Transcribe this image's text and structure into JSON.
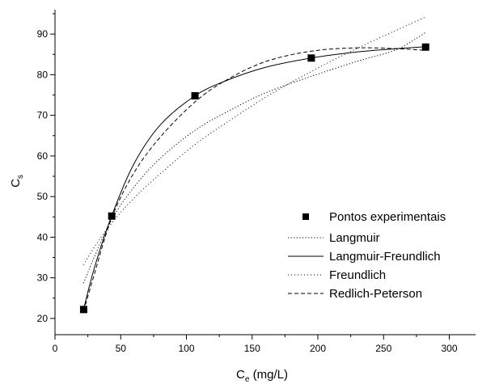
{
  "chart_data": {
    "type": "scatter",
    "x_title": {
      "main": "C",
      "sub": "e",
      "rest": " (mg/L)"
    },
    "y_title": {
      "main": "C",
      "sub": "s"
    },
    "xlim": [
      0,
      320
    ],
    "ylim": [
      16,
      96
    ],
    "x_ticks": [
      0,
      50,
      100,
      150,
      200,
      250,
      300
    ],
    "y_ticks": [
      20,
      30,
      40,
      50,
      60,
      70,
      80,
      90
    ],
    "grid": false,
    "legend_position": "bottom-right",
    "points_series": {
      "name": "Pontos experimentais",
      "x": [
        21.8,
        43.2,
        106.5,
        195.0,
        282.0
      ],
      "y": [
        22.2,
        45.2,
        74.8,
        84.1,
        86.8
      ]
    },
    "series": [
      {
        "name": "Langmuir",
        "dash": "1.2,2.4",
        "x": [
          21.8,
          30,
          43.2,
          60,
          80,
          106.5,
          130,
          160,
          195,
          230,
          260,
          282
        ],
        "y": [
          28.7,
          35.2,
          44.4,
          52.3,
          59.4,
          66.3,
          70.7,
          75.5,
          79.6,
          83.3,
          86.2,
          90.4
        ]
      },
      {
        "name": "Langmuir-Freundlich",
        "dash": "",
        "x": [
          21.8,
          30,
          43.2,
          60,
          80,
          106.5,
          130,
          160,
          195,
          230,
          260,
          282
        ],
        "y": [
          22.3,
          32.5,
          45.3,
          58.0,
          67.6,
          74.8,
          78.5,
          81.8,
          84.1,
          85.6,
          86.4,
          86.9
        ]
      },
      {
        "name": "Freundlich",
        "dash": "1,3",
        "x": [
          21.8,
          30,
          43.2,
          60,
          80,
          106.5,
          130,
          160,
          195,
          230,
          260,
          282
        ],
        "y": [
          33.2,
          37.6,
          43.5,
          49.6,
          55.6,
          62.8,
          68.1,
          74.4,
          80.8,
          86.5,
          91.0,
          94.2
        ]
      },
      {
        "name": "Redlich-Peterson",
        "dash": "5,3",
        "x": [
          21.8,
          30,
          43.2,
          60,
          80,
          106.5,
          130,
          160,
          195,
          230,
          260,
          282
        ],
        "y": [
          21.8,
          31.0,
          44.8,
          55.8,
          64.6,
          73.3,
          78.6,
          83.2,
          85.8,
          86.6,
          86.4,
          86.0
        ]
      }
    ]
  }
}
